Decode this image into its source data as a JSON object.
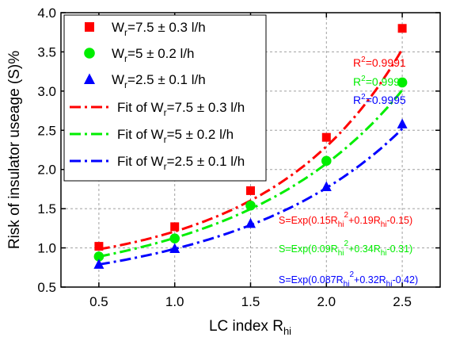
{
  "chart_data": {
    "type": "scatter",
    "xlabel": "LC index R",
    "xlabel_sub": "hi",
    "ylabel": "Risk of insulator useage (S)%",
    "xlim": [
      0.25,
      2.75
    ],
    "ylim": [
      0.5,
      4.0
    ],
    "xticks": [
      "0.5",
      "1.0",
      "1.5",
      "2.0",
      "2.5"
    ],
    "yticks": [
      "0.5",
      "1.0",
      "1.5",
      "2.0",
      "2.5",
      "3.0",
      "3.5",
      "4.0"
    ],
    "grid": true,
    "legend_position": "top-left",
    "legend": {
      "series": [
        {
          "prefix": "W",
          "sub": "r",
          "suffix": "=7.5 ± 0.3 l/h"
        },
        {
          "prefix": "W",
          "sub": "r",
          "suffix": "=5 ± 0.2 l/h"
        },
        {
          "prefix": "W",
          "sub": "r",
          "suffix": "=2.5 ± 0.1 l/h"
        }
      ],
      "fits": [
        {
          "prefix": "Fit of W",
          "sub": "r",
          "suffix": "=7.5 ± 0.3 l/h"
        },
        {
          "prefix": "Fit of W",
          "sub": "r",
          "suffix": "=5 ± 0.2 l/h"
        },
        {
          "prefix": "Fit of W",
          "sub": "r",
          "suffix": "=2.5 ± 0.1 l/h"
        }
      ]
    },
    "series": [
      {
        "marker": "square",
        "color": "#ff0000",
        "x": [
          0.5,
          1.0,
          1.5,
          2.0,
          2.5
        ],
        "y": [
          1.02,
          1.27,
          1.73,
          2.41,
          3.8
        ],
        "fit": {
          "a": 0.15,
          "b": 0.19,
          "c": -0.15
        },
        "r2_label": "R",
        "r2_value": "=0.9991",
        "equation_text": {
          "p1": "S=Exp(0.15R",
          "p2": "hi",
          "p3": "2",
          "p4": "+0.19R",
          "p5": "hi",
          "p6": "-0.15)"
        }
      },
      {
        "marker": "circle",
        "color": "#00ee00",
        "x": [
          0.5,
          1.0,
          1.5,
          2.0,
          2.5
        ],
        "y": [
          0.89,
          1.12,
          1.54,
          2.11,
          3.11
        ],
        "fit": {
          "a": 0.09,
          "b": 0.34,
          "c": -0.31
        },
        "r2_label": "R",
        "r2_value": "=0.9994",
        "equation_text": {
          "p1": "S=Exp(0.09R",
          "p2": "hi",
          "p3": "2",
          "p4": "+0.34R",
          "p5": "hi",
          "p6": "-0.31)"
        }
      },
      {
        "marker": "triangle",
        "color": "#0000ff",
        "x": [
          0.5,
          1.0,
          1.5,
          2.0,
          2.5
        ],
        "y": [
          0.79,
          0.99,
          1.31,
          1.78,
          2.58
        ],
        "fit": {
          "a": 0.087,
          "b": 0.32,
          "c": -0.42
        },
        "r2_label": "R",
        "r2_value": "=0.9995",
        "equation_text": {
          "p1": "S=Exp(0.087R",
          "p2": "hi",
          "p3": "2",
          "p4": "+0.32R",
          "p5": "hi",
          "p6": "-0.42)"
        }
      }
    ]
  }
}
